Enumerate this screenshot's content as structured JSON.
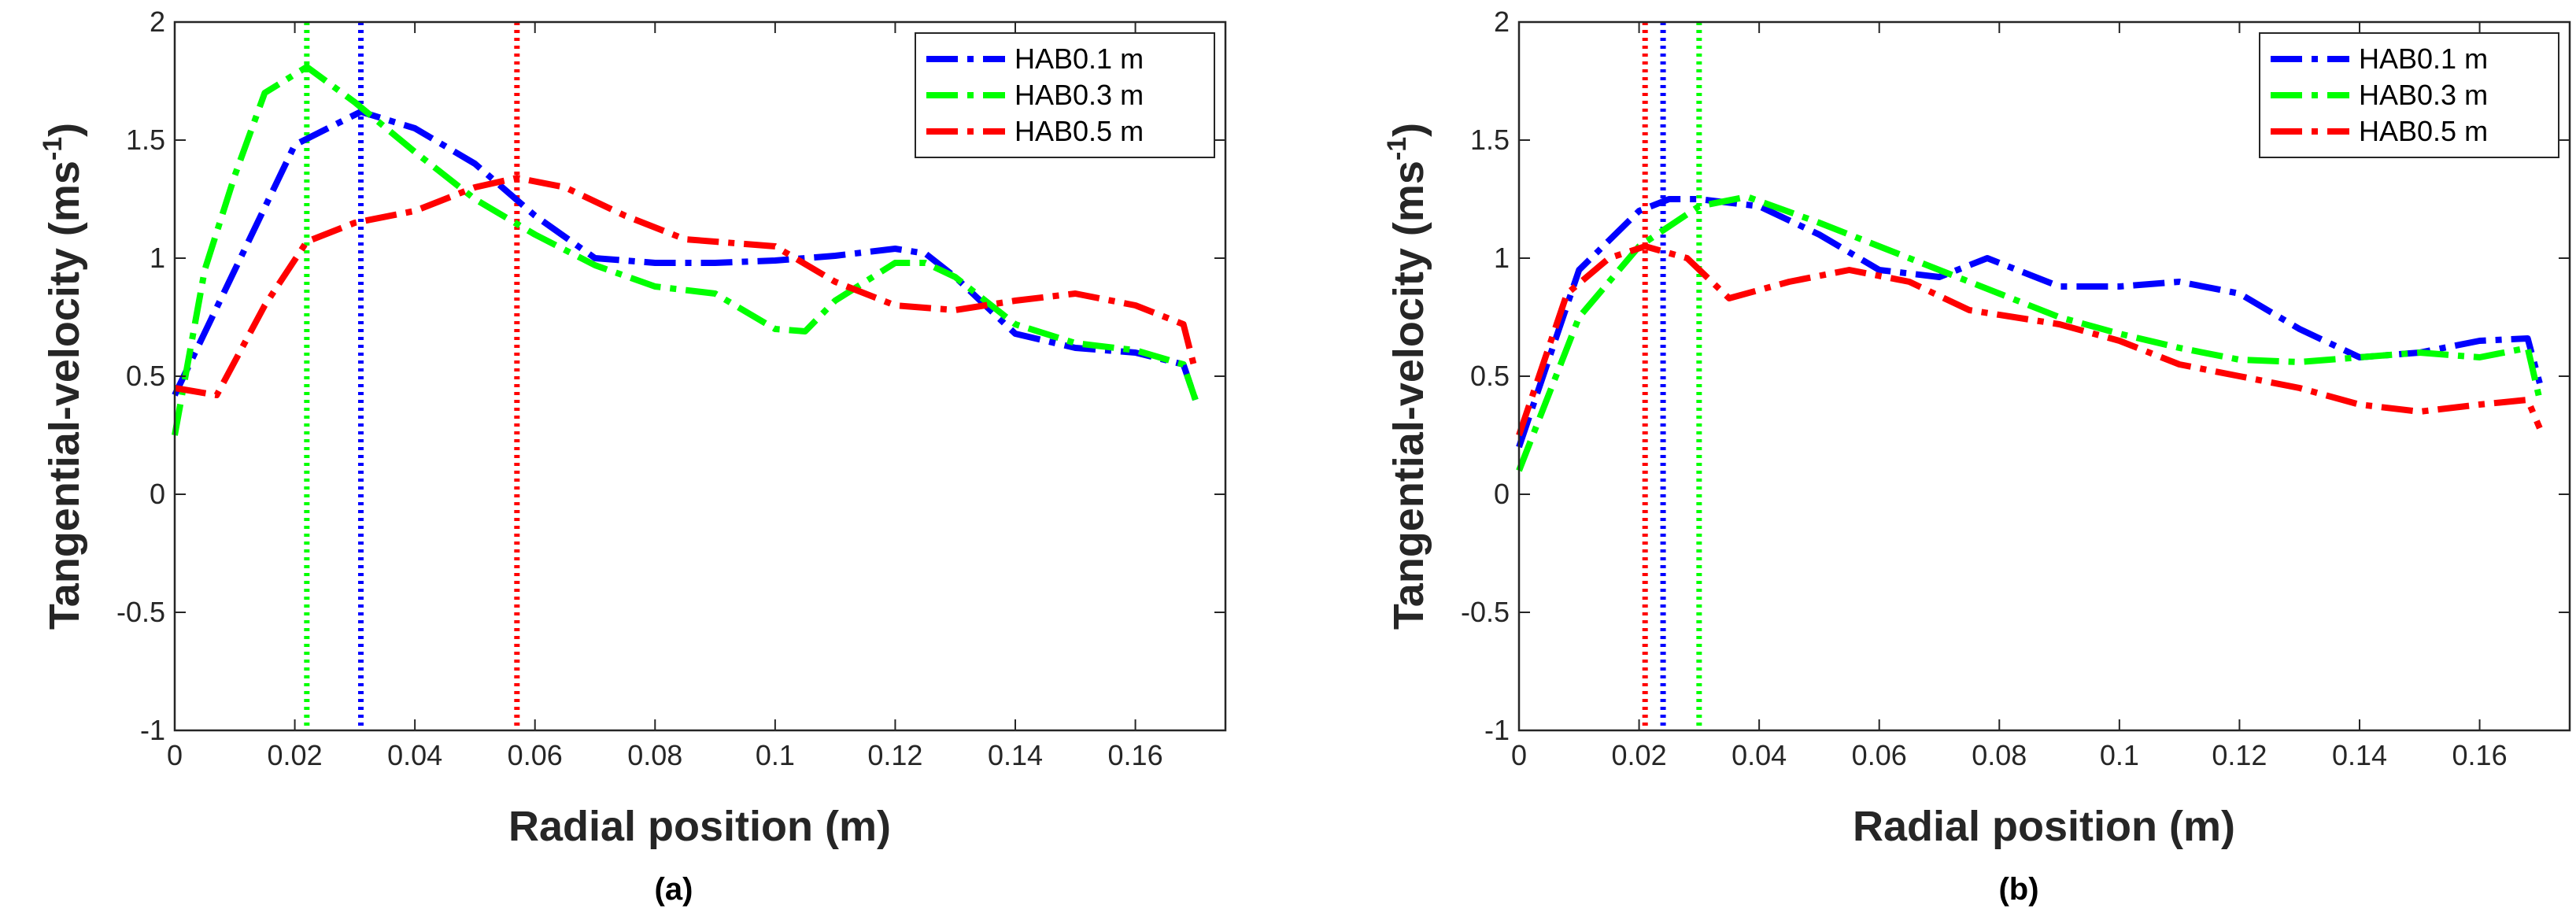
{
  "chart_data": [
    {
      "type": "line",
      "panel_label": "(a)",
      "xlabel": "Radial position (m)",
      "ylabel": "Tangential-velocity (ms",
      "ylabel_sup": "-1",
      "ylabel_close": ")",
      "xlim": [
        0,
        0.175
      ],
      "ylim": [
        -1,
        2
      ],
      "xticks": [
        "0",
        "0.02",
        "0.04",
        "0.06",
        "0.08",
        "0.1",
        "0.12",
        "0.14",
        "0.16"
      ],
      "yticks": [
        "-1",
        "-0.5",
        "0",
        "0.5",
        "1",
        "1.5",
        "2"
      ],
      "legend_position": "top-right",
      "series": [
        {
          "name": "HAB0.1 m",
          "color": "#0000FF",
          "x": [
            0,
            0.01,
            0.02,
            0.031,
            0.04,
            0.05,
            0.06,
            0.07,
            0.08,
            0.09,
            0.1,
            0.11,
            0.12,
            0.125,
            0.13,
            0.14,
            0.15,
            0.16,
            0.168,
            0.17
          ],
          "y": [
            0.42,
            0.95,
            1.48,
            1.62,
            1.55,
            1.4,
            1.18,
            1.0,
            0.98,
            0.98,
            0.99,
            1.01,
            1.04,
            1.02,
            0.92,
            0.68,
            0.62,
            0.6,
            0.55,
            0.4
          ]
        },
        {
          "name": "HAB0.3 m",
          "color": "#00FF00",
          "x": [
            0,
            0.005,
            0.01,
            0.015,
            0.022,
            0.03,
            0.04,
            0.05,
            0.06,
            0.07,
            0.08,
            0.09,
            0.1,
            0.105,
            0.11,
            0.12,
            0.125,
            0.13,
            0.14,
            0.15,
            0.16,
            0.168,
            0.17
          ],
          "y": [
            0.25,
            0.95,
            1.35,
            1.7,
            1.81,
            1.66,
            1.45,
            1.25,
            1.1,
            0.97,
            0.88,
            0.85,
            0.7,
            0.69,
            0.82,
            0.98,
            0.98,
            0.92,
            0.72,
            0.64,
            0.61,
            0.55,
            0.4
          ]
        },
        {
          "name": "HAB0.5 m",
          "color": "#FF0000",
          "x": [
            0,
            0.007,
            0.015,
            0.022,
            0.03,
            0.04,
            0.05,
            0.057,
            0.065,
            0.075,
            0.085,
            0.1,
            0.11,
            0.12,
            0.13,
            0.14,
            0.15,
            0.16,
            0.168,
            0.17
          ],
          "y": [
            0.45,
            0.42,
            0.8,
            1.07,
            1.15,
            1.2,
            1.3,
            1.34,
            1.3,
            1.18,
            1.08,
            1.05,
            0.9,
            0.8,
            0.78,
            0.82,
            0.85,
            0.8,
            0.72,
            0.52
          ]
        }
      ],
      "vlines": [
        {
          "x": 0.022,
          "color": "#00FF00"
        },
        {
          "x": 0.031,
          "color": "#0000FF"
        },
        {
          "x": 0.057,
          "color": "#FF0000"
        }
      ]
    },
    {
      "type": "line",
      "panel_label": "(b)",
      "xlabel": "Radial position (m)",
      "ylabel": "Tangential-velocity (ms",
      "ylabel_sup": "-1",
      "ylabel_close": ")",
      "xlim": [
        0,
        0.175
      ],
      "ylim": [
        -1,
        2
      ],
      "xticks": [
        "0",
        "0.02",
        "0.04",
        "0.06",
        "0.08",
        "0.1",
        "0.12",
        "0.14",
        "0.16"
      ],
      "yticks": [
        "-1",
        "-0.5",
        "0",
        "0.5",
        "1",
        "1.5",
        "2"
      ],
      "legend_position": "top-right",
      "series": [
        {
          "name": "HAB0.1 m",
          "color": "#0000FF",
          "x": [
            0,
            0.01,
            0.02,
            0.025,
            0.03,
            0.04,
            0.05,
            0.06,
            0.07,
            0.078,
            0.09,
            0.1,
            0.11,
            0.12,
            0.13,
            0.14,
            0.15,
            0.16,
            0.168,
            0.17
          ],
          "y": [
            0.2,
            0.95,
            1.2,
            1.25,
            1.25,
            1.22,
            1.1,
            0.95,
            0.92,
            1.0,
            0.88,
            0.88,
            0.9,
            0.85,
            0.7,
            0.58,
            0.6,
            0.65,
            0.66,
            0.47
          ]
        },
        {
          "name": "HAB0.3 m",
          "color": "#00FF00",
          "x": [
            0,
            0.01,
            0.02,
            0.03,
            0.038,
            0.05,
            0.06,
            0.07,
            0.08,
            0.09,
            0.1,
            0.11,
            0.12,
            0.13,
            0.14,
            0.15,
            0.16,
            0.168,
            0.17
          ],
          "y": [
            0.1,
            0.75,
            1.05,
            1.22,
            1.26,
            1.15,
            1.05,
            0.95,
            0.85,
            0.75,
            0.68,
            0.62,
            0.57,
            0.56,
            0.58,
            0.6,
            0.58,
            0.62,
            0.4
          ]
        },
        {
          "name": "HAB0.5 m",
          "color": "#FF0000",
          "x": [
            0,
            0.008,
            0.015,
            0.021,
            0.028,
            0.035,
            0.045,
            0.055,
            0.065,
            0.075,
            0.09,
            0.1,
            0.11,
            0.12,
            0.13,
            0.14,
            0.15,
            0.16,
            0.168,
            0.17
          ],
          "y": [
            0.25,
            0.85,
            1.0,
            1.05,
            1.0,
            0.83,
            0.9,
            0.95,
            0.9,
            0.78,
            0.72,
            0.65,
            0.55,
            0.5,
            0.45,
            0.38,
            0.35,
            0.38,
            0.4,
            0.28
          ]
        }
      ],
      "vlines": [
        {
          "x": 0.021,
          "color": "#FF0000"
        },
        {
          "x": 0.024,
          "color": "#0000FF"
        },
        {
          "x": 0.03,
          "color": "#00FF00"
        }
      ]
    }
  ]
}
